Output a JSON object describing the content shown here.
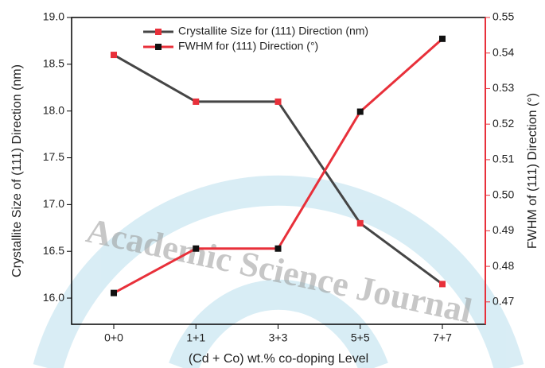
{
  "chart_data": {
    "type": "line",
    "watermark": "Academic Science Journal",
    "xlabel": "(Cd + Co) wt.% co-doping Level",
    "ylabel": "Crystallite Size of (111) Direction (nm)",
    "y2label": "FWHM of (111) Direction (°)",
    "categories": [
      "0+0",
      "1+1",
      "3+3",
      "5+5",
      "7+7"
    ],
    "ylim": [
      15.72,
      19.0
    ],
    "yticks": [
      {
        "value": 16,
        "label": "16.0"
      },
      16.5,
      {
        "value": 17,
        "label": "17.0"
      },
      17.5,
      {
        "value": 18,
        "label": "18.0"
      },
      18.5,
      {
        "value": 19,
        "label": "19.0"
      }
    ],
    "y2lim": [
      0.4637,
      0.55
    ],
    "y2ticks": [
      0.47,
      0.48,
      0.49,
      {
        "value": 0.5,
        "label": "0.50"
      },
      0.51,
      0.52,
      0.53,
      0.54,
      0.55
    ],
    "y2color": "#e8303a",
    "legend": "top-left",
    "series": [
      {
        "name": "Crystallite Size for (111) Direction (nm)",
        "color": "#454545",
        "marker_color": "#e8303a",
        "values": [
          18.6,
          18.1,
          18.1,
          16.8,
          16.15
        ]
      },
      {
        "name": "FWHM for (111) Direction (°)",
        "color": "#e8303a",
        "marker_color": "#111111",
        "axis": "y2",
        "values": [
          0.4725,
          0.485,
          0.485,
          0.5235,
          0.544
        ]
      }
    ]
  }
}
